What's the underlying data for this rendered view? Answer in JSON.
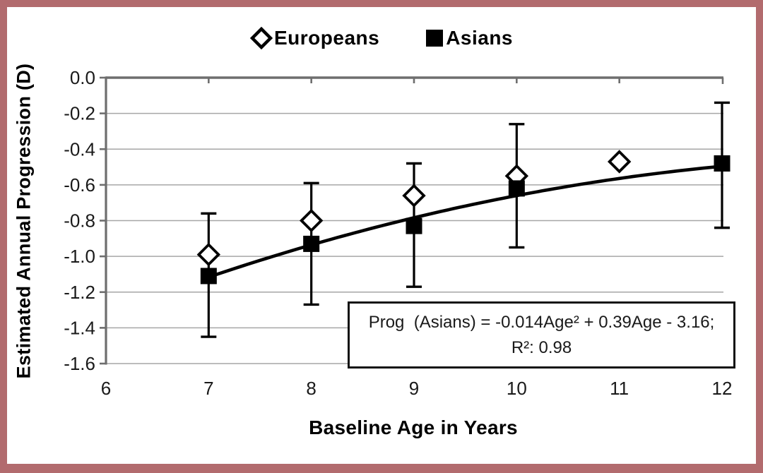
{
  "frame": {
    "border_color": "#b26b6e",
    "background": "#ffffff"
  },
  "legend": {
    "items": [
      {
        "label": "Europeans",
        "marker": "open-diamond"
      },
      {
        "label": "Asians",
        "marker": "filled-square"
      }
    ]
  },
  "axes": {
    "x_title": "Baseline Age in Years",
    "y_title": "Estimated Annual Progression (D)"
  },
  "annotation_box": {
    "line1": "Prog  (Asians) = -0.014Age² + 0.39Age - 3.16;",
    "line2": "R²: 0.98"
  },
  "chart_data": {
    "type": "scatter",
    "title": "",
    "xlabel": "Baseline Age in Years",
    "ylabel": "Estimated Annual Progression (D)",
    "xlim": [
      6,
      12
    ],
    "ylim": [
      -1.6,
      0.0
    ],
    "x_ticks": [
      "6",
      "7",
      "8",
      "9",
      "10",
      "11",
      "12"
    ],
    "y_ticks": [
      "0.0",
      "-0.2",
      "-0.4",
      "-0.6",
      "-0.8",
      "-1.0",
      "-1.2",
      "-1.4",
      "-1.6"
    ],
    "grid": "horizontal-gridlines",
    "legend_position": "top-center",
    "series": [
      {
        "name": "Europeans",
        "marker": "open-diamond",
        "x": [
          7,
          8,
          9,
          10,
          11
        ],
        "y": [
          -0.99,
          -0.8,
          -0.66,
          -0.55,
          -0.47
        ]
      },
      {
        "name": "Asians",
        "marker": "filled-square",
        "x": [
          7,
          8,
          9,
          10,
          12
        ],
        "y": [
          -1.11,
          -0.93,
          -0.83,
          -0.62,
          -0.48
        ],
        "error_upper": [
          -0.76,
          -0.59,
          -0.48,
          -0.26,
          -0.14
        ],
        "error_lower": [
          -1.45,
          -1.27,
          -1.17,
          -0.95,
          -0.84
        ]
      }
    ],
    "trendline": {
      "applies_to": "Asians",
      "a2": -0.014,
      "a1": 0.39,
      "a0": -3.16,
      "r_squared": 0.98,
      "x_start": 7,
      "x_end": 12
    },
    "colors": {
      "marker": "#000000",
      "trendline": "#000000",
      "gridline": "#a6a6a6",
      "axis": "#6e6e6e",
      "tick_label": "#1a1a1a"
    }
  }
}
